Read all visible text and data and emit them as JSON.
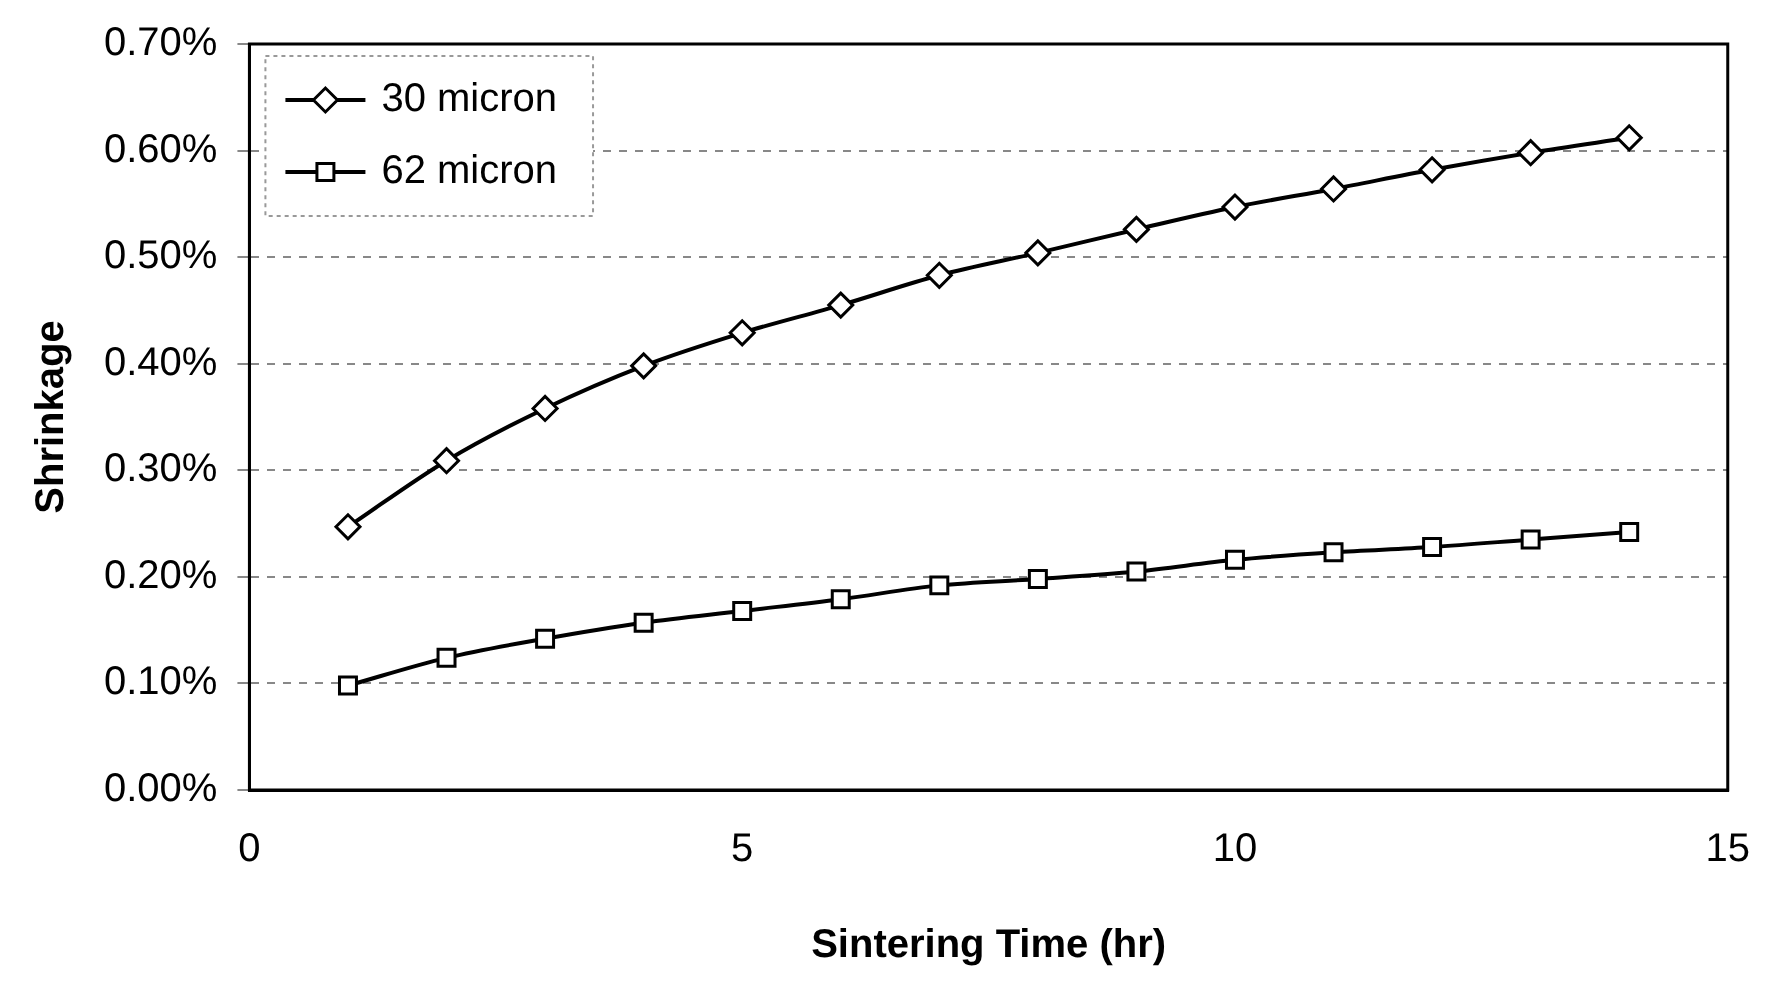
{
  "chart_data": {
    "type": "line",
    "xlabel": "Sintering Time (hr)",
    "ylabel": "Shrinkage",
    "x": [
      1,
      2,
      3,
      4,
      5,
      6,
      7,
      8,
      9,
      10,
      11,
      12,
      13,
      14
    ],
    "series": [
      {
        "name": "30 micron",
        "color": "#000000",
        "marker": "diamond",
        "values": [
          0.247,
          0.309,
          0.358,
          0.398,
          0.429,
          0.455,
          0.483,
          0.504,
          0.526,
          0.547,
          0.564,
          0.582,
          0.598,
          0.612
        ]
      },
      {
        "name": "62 micron",
        "color": "#000000",
        "marker": "square",
        "values": [
          0.098,
          0.124,
          0.142,
          0.157,
          0.168,
          0.179,
          0.192,
          0.198,
          0.205,
          0.216,
          0.223,
          0.228,
          0.235,
          0.242
        ]
      }
    ],
    "xlim": [
      0,
      15
    ],
    "xticks": [
      0,
      5,
      10,
      15
    ],
    "ylim": [
      0,
      0.7
    ],
    "yticks": [
      {
        "value": 0,
        "label": "0.00%"
      },
      {
        "value": 0.1,
        "label": "0.10%"
      },
      {
        "value": 0.2,
        "label": "0.20%"
      },
      {
        "value": 0.3,
        "label": "0.30%"
      },
      {
        "value": 0.4,
        "label": "0.40%"
      },
      {
        "value": 0.5,
        "label": "0.50%"
      },
      {
        "value": 0.6,
        "label": "0.60%"
      },
      {
        "value": 0.7,
        "label": "0.70%"
      }
    ],
    "grid": "y",
    "legend": "top left",
    "line_style": "solid"
  }
}
